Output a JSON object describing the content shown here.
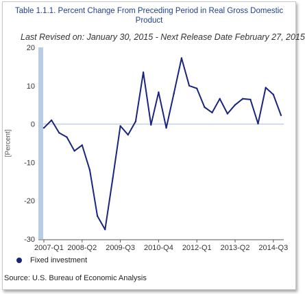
{
  "chart_data": {
    "type": "line",
    "title": "Table 1.1.1. Percent Change From Preceding Period in Real Gross Domestic Product",
    "subtitle": "Last Revised on: January 30, 2015 - Next Release Date February 27, 2015",
    "ylabel": "[Percent]",
    "xlabel": "",
    "ylim": [
      -30,
      20
    ],
    "yticks": [
      20,
      10,
      0,
      -10,
      -20,
      -30
    ],
    "x_tick_labels": [
      "2007-Q1",
      "2008-Q2",
      "2009-Q3",
      "2010-Q4",
      "2012-Q1",
      "2013-Q2",
      "2014-Q3"
    ],
    "categories": [
      "2007-Q1",
      "2007-Q2",
      "2007-Q3",
      "2007-Q4",
      "2008-Q1",
      "2008-Q2",
      "2008-Q3",
      "2008-Q4",
      "2009-Q1",
      "2009-Q2",
      "2009-Q3",
      "2009-Q4",
      "2010-Q1",
      "2010-Q2",
      "2010-Q3",
      "2010-Q4",
      "2011-Q1",
      "2011-Q2",
      "2011-Q3",
      "2011-Q4",
      "2012-Q1",
      "2012-Q2",
      "2012-Q3",
      "2012-Q4",
      "2013-Q1",
      "2013-Q2",
      "2013-Q3",
      "2013-Q4",
      "2014-Q1",
      "2014-Q2",
      "2014-Q3",
      "2014-Q4"
    ],
    "series": [
      {
        "name": "Fixed investment",
        "color": "#1a237e",
        "values": [
          -1.0,
          1.0,
          -2.3,
          -3.4,
          -7.0,
          -5.5,
          -12.0,
          -24.0,
          -27.5,
          -14.2,
          -0.5,
          -2.8,
          0.7,
          13.5,
          -0.2,
          8.3,
          -1.0,
          8.0,
          17.2,
          10.0,
          9.3,
          4.4,
          3.0,
          6.6,
          2.7,
          5.0,
          6.6,
          6.4,
          0.1,
          9.5,
          7.7,
          2.3
        ]
      }
    ],
    "grid": "horizontal zero line only",
    "legend_position": "bottom-left"
  },
  "legend_label": "Fixed investment",
  "source": "Source: U.S. Bureau of Economic Analysis"
}
